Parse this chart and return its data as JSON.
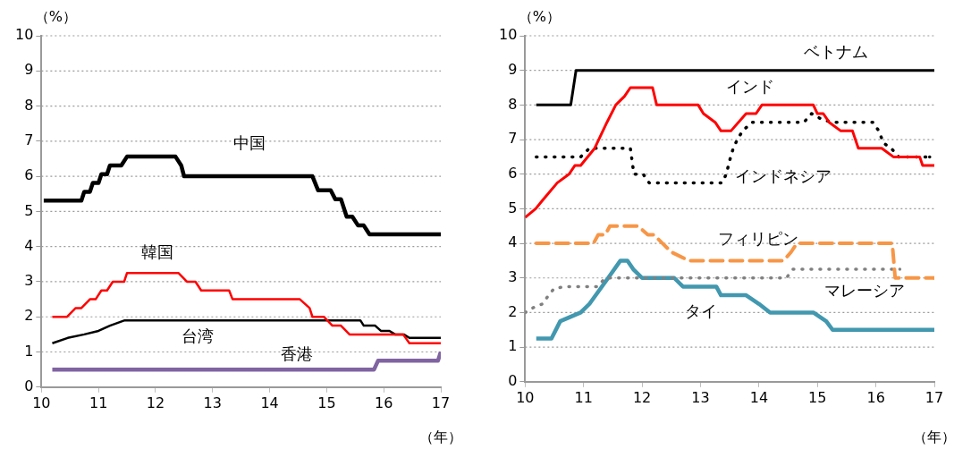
{
  "chart_data": [
    {
      "type": "line",
      "ylabel": "（%）",
      "xlabel": "（年）",
      "xlim": [
        10,
        17
      ],
      "xticks": [
        10,
        11,
        12,
        13,
        14,
        15,
        16,
        17
      ],
      "ylim": [
        0,
        10
      ],
      "yticks": [
        0,
        1,
        2,
        3,
        4,
        5,
        6,
        7,
        8,
        9,
        10
      ],
      "grid": "y",
      "legend": false,
      "marker": "none",
      "series": [
        {
          "name": "中国",
          "color": "#000000",
          "line_style": "solid",
          "x": [
            10.04,
            10.7,
            10.75,
            10.85,
            10.9,
            11.0,
            11.05,
            11.15,
            11.2,
            11.4,
            11.5,
            12.35,
            12.45,
            12.5,
            14.75,
            14.85,
            15.07,
            15.15,
            15.25,
            15.35,
            15.45,
            15.55,
            15.65,
            15.75,
            17.0
          ],
          "values": [
            5.31,
            5.31,
            5.56,
            5.56,
            5.81,
            5.81,
            6.06,
            6.06,
            6.31,
            6.31,
            6.56,
            6.56,
            6.31,
            6.0,
            6.0,
            5.6,
            5.6,
            5.35,
            5.35,
            4.85,
            4.85,
            4.6,
            4.6,
            4.35,
            4.35
          ]
        },
        {
          "name": "韓国",
          "color": "#ff0000",
          "line_style": "solid",
          "x": [
            10.19,
            10.45,
            10.6,
            10.7,
            10.85,
            10.95,
            11.05,
            11.15,
            11.25,
            11.45,
            11.5,
            12.4,
            12.55,
            12.7,
            12.8,
            13.29,
            13.35,
            14.53,
            14.7,
            14.75,
            14.95,
            15.1,
            15.25,
            15.4,
            16.34,
            16.45,
            17.0
          ],
          "values": [
            2.0,
            2.0,
            2.25,
            2.25,
            2.5,
            2.5,
            2.75,
            2.75,
            3.0,
            3.0,
            3.25,
            3.25,
            3.0,
            3.0,
            2.75,
            2.75,
            2.5,
            2.5,
            2.25,
            2.0,
            2.0,
            1.75,
            1.75,
            1.5,
            1.5,
            1.25,
            1.25
          ]
        },
        {
          "name": "台湾",
          "color": "#000000",
          "line_style": "solid",
          "x": [
            10.19,
            10.46,
            10.75,
            11.0,
            11.2,
            11.46,
            15.59,
            15.65,
            15.85,
            15.95,
            16.1,
            16.2,
            16.35,
            16.45,
            17.0
          ],
          "values": [
            1.25,
            1.4,
            1.5,
            1.6,
            1.75,
            1.9,
            1.9,
            1.75,
            1.75,
            1.6,
            1.6,
            1.5,
            1.5,
            1.4,
            1.4
          ]
        },
        {
          "name": "香港",
          "color": "#8064a2",
          "line_style": "solid",
          "x": [
            10.19,
            15.83,
            15.9,
            16.95,
            17.0
          ],
          "values": [
            0.5,
            0.5,
            0.75,
            0.75,
            1.0
          ]
        }
      ]
    },
    {
      "type": "line",
      "ylabel": "（%）",
      "xlabel": "（年）",
      "xlim": [
        10,
        17
      ],
      "xticks": [
        10,
        11,
        12,
        13,
        14,
        15,
        16,
        17
      ],
      "ylim": [
        0,
        10
      ],
      "yticks": [
        0,
        1,
        2,
        3,
        4,
        5,
        6,
        7,
        8,
        9,
        10
      ],
      "grid": "y",
      "legend": false,
      "marker": "none",
      "series": [
        {
          "name": "ベトナム",
          "color": "#000000",
          "line_style": "solid",
          "x": [
            10.19,
            10.78,
            10.87,
            17.0
          ],
          "values": [
            8,
            8,
            9,
            9
          ]
        },
        {
          "name": "インド",
          "color": "#ff0000",
          "line_style": "solid",
          "x": [
            10.0,
            10.18,
            10.3,
            10.55,
            10.75,
            10.85,
            10.95,
            11.19,
            11.4,
            11.55,
            11.7,
            11.8,
            12.18,
            12.25,
            12.96,
            13.05,
            13.25,
            13.35,
            13.52,
            13.78,
            13.95,
            14.05,
            14.93,
            15.0,
            15.1,
            15.2,
            15.4,
            15.6,
            15.7,
            16.1,
            16.3,
            16.75,
            16.8,
            17.0
          ],
          "values": [
            4.75,
            5.0,
            5.25,
            5.75,
            6.0,
            6.25,
            6.25,
            6.75,
            7.5,
            8.0,
            8.25,
            8.5,
            8.5,
            8.0,
            8.0,
            7.75,
            7.5,
            7.25,
            7.25,
            7.75,
            7.75,
            8.0,
            8.0,
            7.75,
            7.75,
            7.5,
            7.25,
            7.25,
            6.75,
            6.75,
            6.5,
            6.5,
            6.25,
            6.25
          ]
        },
        {
          "name": "インドネシア",
          "color": "#000000",
          "line_style": "dotted",
          "x": [
            10.19,
            10.95,
            11.1,
            11.8,
            11.86,
            12.02,
            12.12,
            13.37,
            13.44,
            13.5,
            13.56,
            13.63,
            13.72,
            13.88,
            14.77,
            14.9,
            15.06,
            15.24,
            15.95,
            16.05,
            16.13,
            16.26,
            16.39,
            16.92
          ],
          "values": [
            6.5,
            6.5,
            6.75,
            6.75,
            6.0,
            6.0,
            5.75,
            5.75,
            6.0,
            6.4,
            6.75,
            7.0,
            7.25,
            7.5,
            7.5,
            7.75,
            7.6,
            7.5,
            7.5,
            7.25,
            6.9,
            6.75,
            6.5,
            6.5
          ]
        },
        {
          "name": "フィリピン",
          "color": "#f79646",
          "line_style": "dashed",
          "x": [
            10.19,
            11.17,
            11.25,
            11.37,
            11.45,
            11.93,
            12.1,
            12.2,
            12.35,
            12.5,
            12.8,
            14.42,
            14.55,
            14.65,
            16.28,
            16.33,
            17.0
          ],
          "values": [
            4.0,
            4.0,
            4.25,
            4.25,
            4.5,
            4.5,
            4.25,
            4.25,
            4.0,
            3.75,
            3.5,
            3.5,
            3.75,
            4.0,
            4.0,
            3.0,
            3.0
          ]
        },
        {
          "name": "マレーシア",
          "color": "#808080",
          "line_style": "dotted",
          "x": [
            10.0,
            10.15,
            10.3,
            10.4,
            10.5,
            10.7,
            11.24,
            11.37,
            14.47,
            14.58,
            16.41
          ],
          "values": [
            2.0,
            2.15,
            2.25,
            2.5,
            2.7,
            2.75,
            2.75,
            3.0,
            3.0,
            3.25,
            3.25
          ]
        },
        {
          "name": "タイ",
          "color": "#4198af",
          "line_style": "solid",
          "x": [
            10.19,
            10.45,
            10.6,
            10.95,
            11.1,
            11.42,
            11.63,
            11.75,
            11.85,
            12.0,
            12.55,
            12.7,
            13.27,
            13.35,
            13.78,
            14.0,
            14.19,
            14.93,
            15.15,
            15.26,
            17.0
          ],
          "values": [
            1.25,
            1.25,
            1.75,
            2.0,
            2.25,
            3.0,
            3.5,
            3.5,
            3.25,
            3.0,
            3.0,
            2.75,
            2.75,
            2.5,
            2.5,
            2.25,
            2.0,
            2.0,
            1.75,
            1.5,
            1.5
          ]
        }
      ]
    }
  ]
}
